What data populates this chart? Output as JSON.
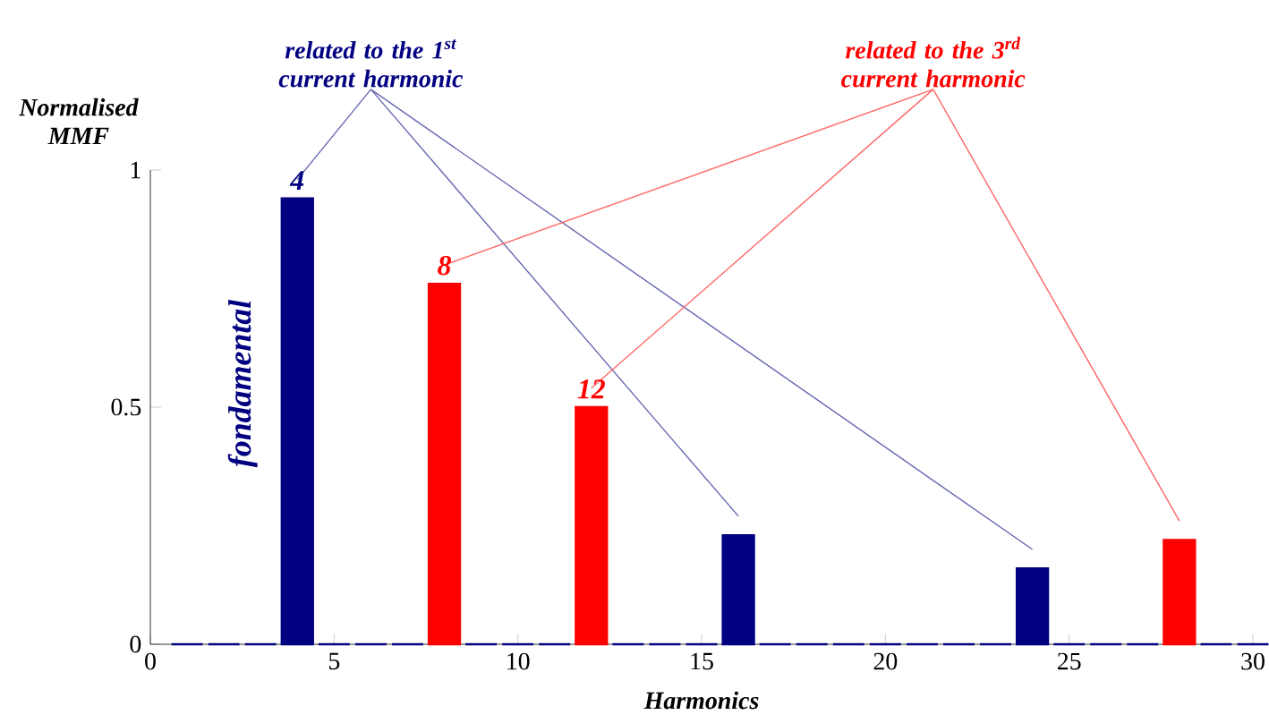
{
  "chart_data": {
    "type": "bar",
    "xlabel": "Harmonics",
    "ylabel": "Normalised MMF",
    "xlim": [
      0,
      30
    ],
    "ylim": [
      0,
      1
    ],
    "xticks": [
      0,
      5,
      10,
      15,
      20,
      25,
      30
    ],
    "yticks": [
      0,
      0.5,
      1
    ],
    "series": [
      {
        "name": "related to the 1$^{st}$ current harmonic",
        "color": "#000080",
        "x": [
          1,
          2,
          3,
          4,
          5,
          6,
          7,
          9,
          10,
          11,
          13,
          14,
          15,
          16,
          17,
          18,
          19,
          20,
          21,
          22,
          23,
          24,
          25,
          26,
          27,
          29,
          30
        ],
        "values": [
          0,
          0,
          0,
          0.94,
          0,
          0,
          0,
          0,
          0,
          0,
          0,
          0,
          0,
          0.23,
          0,
          0,
          0,
          0,
          0,
          0,
          0,
          0.16,
          0,
          0,
          0,
          0,
          0
        ]
      },
      {
        "name": "related to the 3$^{rd}$ current harmonic",
        "color": "#ff0000",
        "x": [
          8,
          12,
          28
        ],
        "values": [
          0.76,
          0.5,
          0.22
        ]
      }
    ],
    "annotations": [
      {
        "text": "4",
        "x": 4,
        "y": 0.94
      },
      {
        "text": "8",
        "x": 8,
        "y": 0.76
      },
      {
        "text": "12",
        "x": 12,
        "y": 0.5
      },
      "fondamental"
    ]
  }
}
